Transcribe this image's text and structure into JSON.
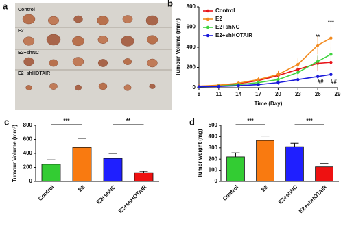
{
  "photo_panel": {
    "panel_label": "a",
    "row_labels": [
      "Control",
      "E2",
      "E2+shNC",
      "E2+shHOTAIR"
    ]
  },
  "chart_data": [
    {
      "type": "line",
      "panel_label": "b",
      "x_label": "Time (Day)",
      "y_label": "Tumour Volume (mm³)",
      "x": [
        8,
        11,
        14,
        17,
        20,
        23,
        26,
        28
      ],
      "xlim": [
        8,
        29
      ],
      "xticks": [
        8,
        11,
        14,
        17,
        20,
        23,
        26,
        29
      ],
      "ylim": [
        0,
        800
      ],
      "yticks": [
        0,
        200,
        400,
        600,
        800
      ],
      "series": [
        {
          "name": "Control",
          "color": "#e8141a",
          "values": [
            15,
            20,
            40,
            70,
            120,
            180,
            240,
            250
          ],
          "errors": [
            5,
            8,
            15,
            25,
            40,
            60,
            70,
            80
          ]
        },
        {
          "name": "E2",
          "color": "#f28a1e",
          "values": [
            15,
            25,
            45,
            80,
            130,
            230,
            420,
            490
          ],
          "errors": [
            5,
            8,
            15,
            25,
            40,
            60,
            90,
            130
          ]
        },
        {
          "name": "E2+shNC",
          "color": "#3fd43f",
          "values": [
            10,
            15,
            30,
            50,
            80,
            150,
            260,
            330
          ],
          "errors": [
            4,
            6,
            12,
            20,
            30,
            50,
            60,
            70
          ]
        },
        {
          "name": "E2+shHOTAIR",
          "color": "#1a1adb",
          "values": [
            10,
            12,
            20,
            30,
            50,
            80,
            110,
            130
          ],
          "errors": [
            3,
            4,
            8,
            12,
            20,
            25,
            20,
            20
          ]
        }
      ],
      "legend": "upper-left",
      "annotations": [
        "**",
        "***",
        "##",
        "##"
      ]
    },
    {
      "type": "bar",
      "panel_label": "c",
      "y_label": "Tumour Volume (mm³)",
      "categories": [
        "Control",
        "E2",
        "E2+shNC",
        "E2+shHOTAIR"
      ],
      "values": [
        245,
        485,
        330,
        125
      ],
      "errors": [
        65,
        130,
        70,
        20
      ],
      "colors": [
        "#33cc33",
        "#f97a10",
        "#1f1fff",
        "#ee1111"
      ],
      "ylim": [
        0,
        800
      ],
      "yticks": [
        0,
        200,
        400,
        600,
        800
      ],
      "significance": [
        "***",
        "**"
      ]
    },
    {
      "type": "bar",
      "panel_label": "d",
      "y_label": "Tumor weight (mg)",
      "categories": [
        "Control",
        "E2",
        "E2+shNC",
        "E2+shHOTAIR"
      ],
      "values": [
        220,
        365,
        310,
        130
      ],
      "errors": [
        35,
        40,
        30,
        30
      ],
      "colors": [
        "#33cc33",
        "#f97a10",
        "#1f1fff",
        "#ee1111"
      ],
      "ylim": [
        0,
        500
      ],
      "yticks": [
        0,
        100,
        200,
        300,
        400,
        500
      ],
      "significance": [
        "***",
        "***"
      ]
    }
  ]
}
